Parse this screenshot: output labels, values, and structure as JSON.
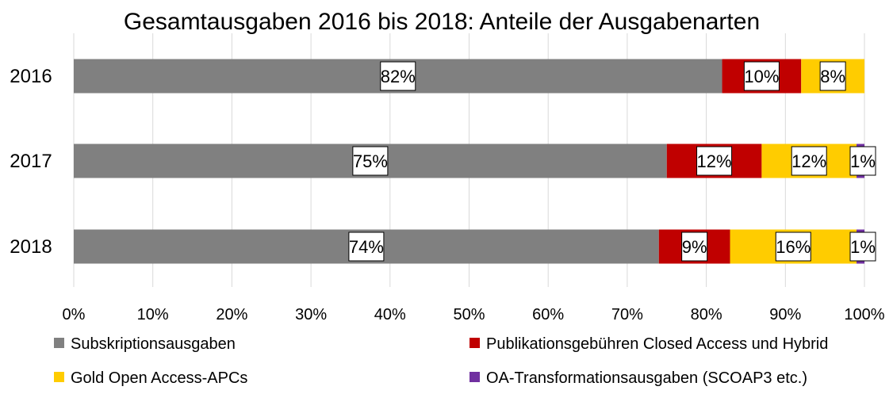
{
  "chart_data": {
    "type": "bar",
    "orientation": "horizontal",
    "stacked": true,
    "title": "Gesamtausgaben 2016 bis 2018: Anteile der Ausgabenarten",
    "categories": [
      "2016",
      "2017",
      "2018"
    ],
    "series": [
      {
        "name": "Subskriptionsausgaben",
        "color": "#808080",
        "values": [
          82,
          75,
          74
        ],
        "labels": [
          "82%",
          "75%",
          "74%"
        ]
      },
      {
        "name": "Publikationsgebühren Closed Access und Hybrid",
        "color": "#C00000",
        "values": [
          10,
          12,
          9
        ],
        "labels": [
          "10%",
          "12%",
          "9%"
        ]
      },
      {
        "name": "Gold Open Access-APCs",
        "color": "#FFCC00",
        "values": [
          8,
          12,
          16
        ],
        "labels": [
          "8%",
          "12%",
          "16%"
        ]
      },
      {
        "name": "OA-Transformationsausgaben (SCOAP3 etc.)",
        "color": "#7030A0",
        "values": [
          0,
          1,
          1
        ],
        "labels": [
          "",
          "1%",
          "1%"
        ]
      }
    ],
    "xlim": [
      0,
      100
    ],
    "xticks": [
      "0%",
      "10%",
      "20%",
      "30%",
      "40%",
      "50%",
      "60%",
      "70%",
      "80%",
      "90%",
      "100%"
    ],
    "xlabel": "",
    "ylabel": "",
    "grid": true,
    "legend": "bottom"
  }
}
